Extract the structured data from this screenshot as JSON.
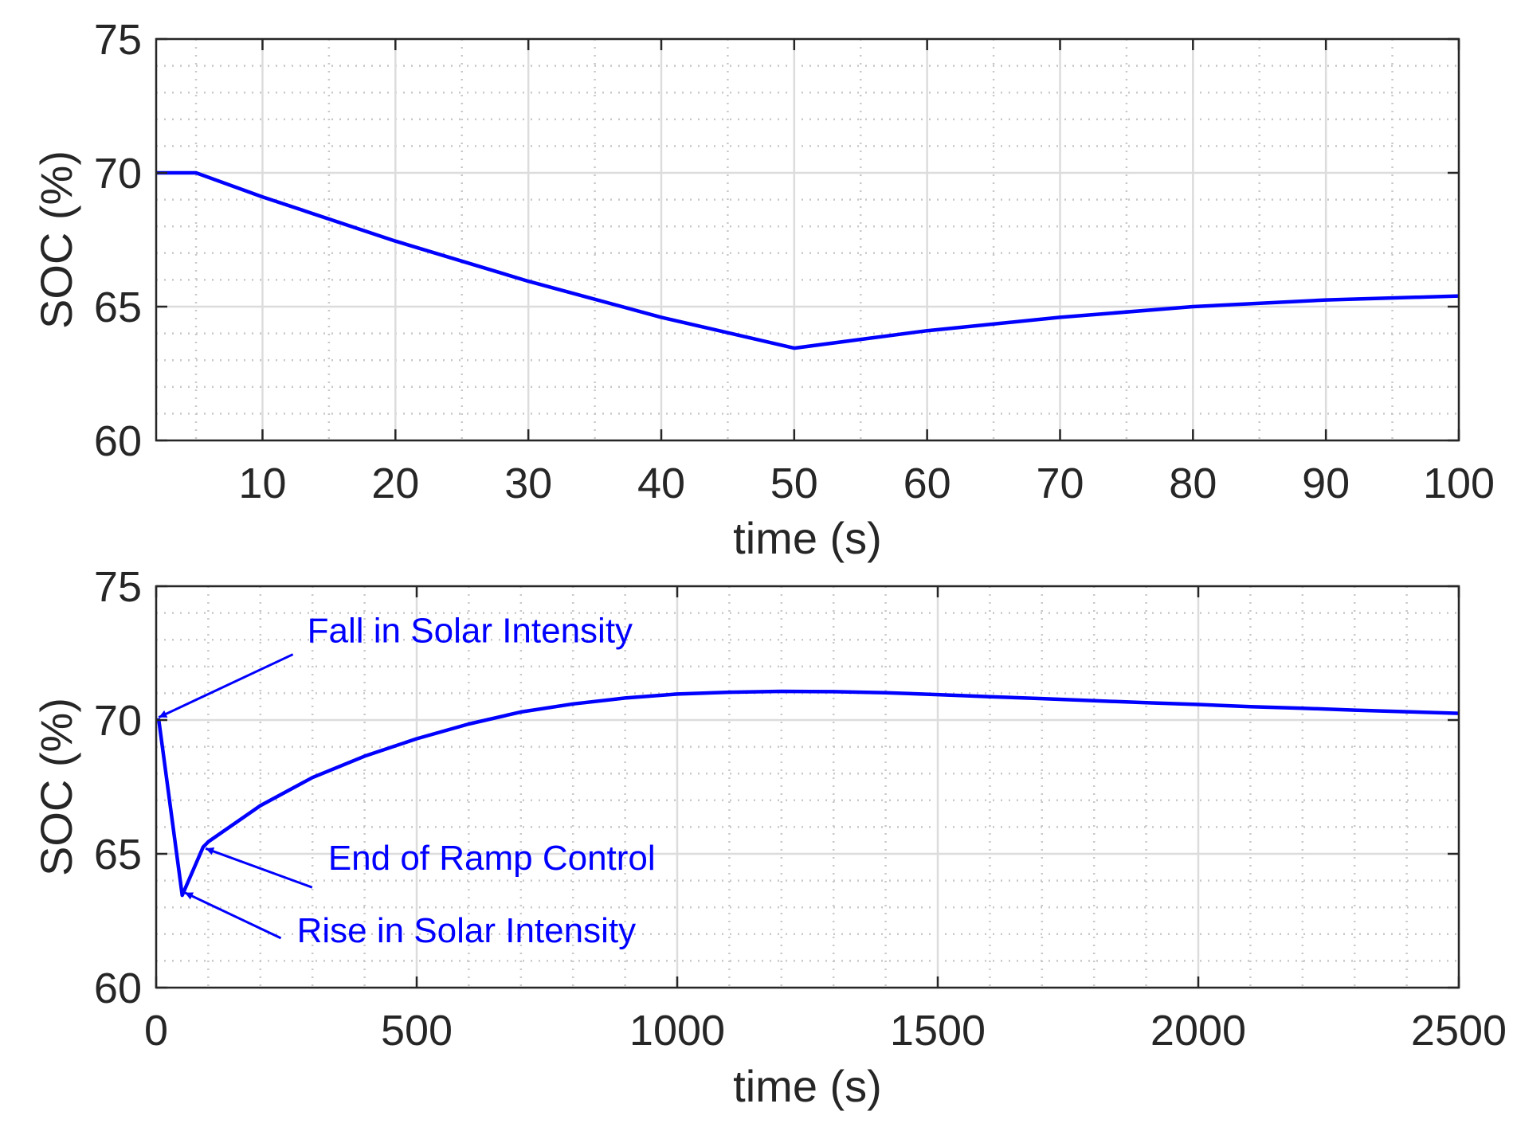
{
  "chart_data": [
    {
      "type": "line",
      "title": "",
      "xlabel": "time (s)",
      "ylabel": "SOC (%)",
      "xlim": [
        2,
        100
      ],
      "ylim": [
        60,
        75
      ],
      "xticks": [
        10,
        20,
        30,
        40,
        50,
        60,
        70,
        80,
        90,
        100
      ],
      "yticks": [
        60,
        65,
        70,
        75
      ],
      "grid": true,
      "minor_grid": true,
      "color": "#0000ff",
      "series": [
        {
          "name": "SOC",
          "x": [
            2,
            5,
            10,
            20,
            30,
            40,
            50,
            60,
            70,
            80,
            90,
            100
          ],
          "y": [
            70.0,
            70.0,
            69.1,
            67.45,
            65.95,
            64.6,
            63.45,
            64.1,
            64.6,
            65.0,
            65.25,
            65.4
          ]
        }
      ],
      "annotations": []
    },
    {
      "type": "line",
      "title": "",
      "xlabel": "time (s)",
      "ylabel": "SOC (%)",
      "xlim": [
        0,
        2500
      ],
      "ylim": [
        60,
        75
      ],
      "xticks": [
        0,
        500,
        1000,
        1500,
        2000,
        2500
      ],
      "yticks": [
        60,
        65,
        70,
        75
      ],
      "grid": true,
      "minor_grid": true,
      "color": "#0000ff",
      "series": [
        {
          "name": "SOC",
          "x": [
            0,
            5,
            50,
            90,
            100,
            200,
            300,
            400,
            500,
            600,
            700,
            800,
            900,
            1000,
            1100,
            1200,
            1300,
            1400,
            1500,
            1600,
            1700,
            1800,
            1900,
            2000,
            2100,
            2200,
            2300,
            2400,
            2500
          ],
          "y": [
            70.0,
            70.0,
            63.45,
            65.25,
            65.45,
            66.8,
            67.85,
            68.65,
            69.3,
            69.85,
            70.3,
            70.6,
            70.82,
            70.97,
            71.04,
            71.07,
            71.06,
            71.02,
            70.95,
            70.87,
            70.8,
            70.72,
            70.65,
            70.58,
            70.5,
            70.44,
            70.37,
            70.31,
            70.25
          ]
        }
      ],
      "annotations": [
        {
          "text": "Fall in Solar Intensity",
          "point_to": [
            5,
            70.1
          ],
          "text_at": [
            290,
            72.9
          ]
        },
        {
          "text": "End of Ramp Control",
          "point_to": [
            95,
            65.2
          ],
          "text_at": [
            330,
            64.4
          ]
        },
        {
          "text": "Rise in Solar Intensity",
          "point_to": [
            55,
            63.55
          ],
          "text_at": [
            270,
            61.7
          ]
        }
      ]
    }
  ]
}
